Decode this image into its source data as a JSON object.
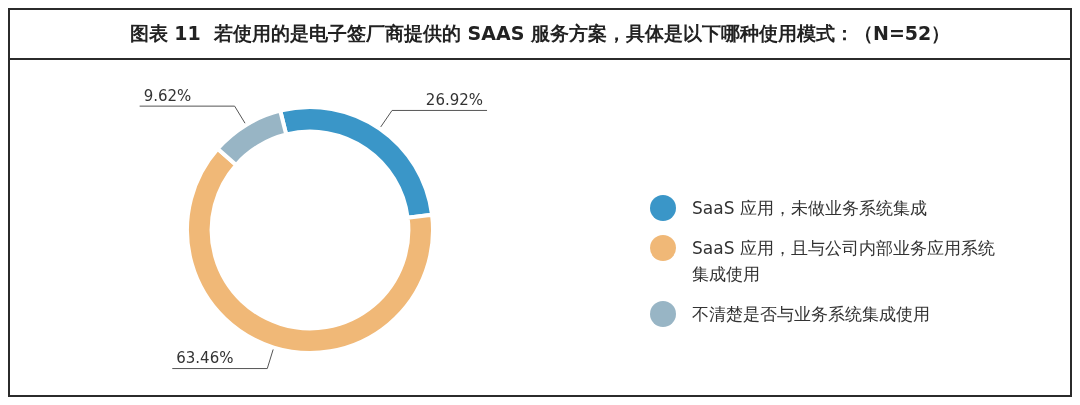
{
  "chart_data": {
    "type": "donut",
    "title": "图表 11  若使用的是电子签厂商提供的 SAAS 服务方案，具体是以下哪种使用模式：（N=52）",
    "categories": [
      "SaaS 应用，未做业务系统集成",
      "SaaS 应用，且与公司内部业务应用系统集成使用",
      "不清楚是否与业务系统集成使用"
    ],
    "values": [
      26.92,
      63.46,
      9.62
    ],
    "colors": [
      "#3a96c8",
      "#f0b877",
      "#98b5c5"
    ],
    "value_labels": [
      "26.92%",
      "63.46%",
      "9.62%"
    ],
    "legend": "right"
  }
}
